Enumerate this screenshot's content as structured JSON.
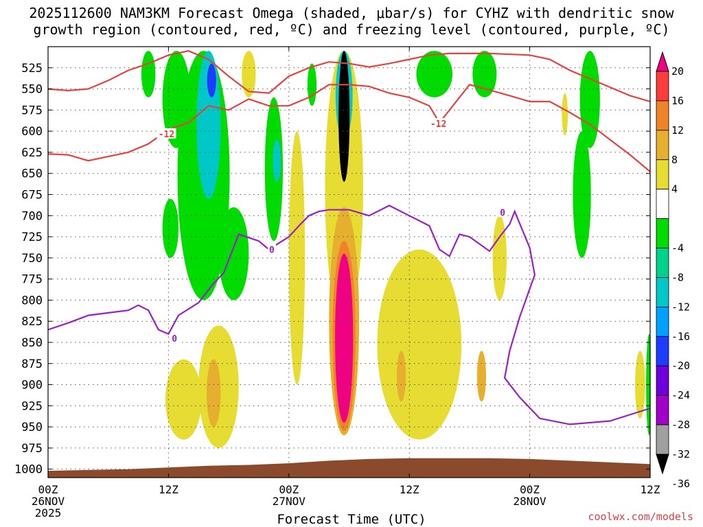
{
  "chart_data": {
    "type": "heatmap",
    "title_line1": "2025112600 NAM3KM Forecast Omega (shaded, μbar/s) for CYHZ with dendritic snow",
    "title_line2": "growth region (contoured, red, ºC) and freezing level (contoured, purple, ºC)",
    "xlabel": "Forecast Time (UTC)",
    "ylabel": "",
    "credit": "coolwx.com/models",
    "x_range_hours": [
      0,
      60
    ],
    "y_range_hpa": [
      1010,
      500
    ],
    "y_ticks": [
      525,
      550,
      575,
      600,
      625,
      650,
      675,
      700,
      725,
      750,
      775,
      800,
      825,
      850,
      875,
      900,
      925,
      950,
      975,
      1000
    ],
    "x_ticks": [
      {
        "hour": 0,
        "line1": "00Z",
        "line2": "26NOV",
        "line3": "2025"
      },
      {
        "hour": 12,
        "line1": "12Z",
        "line2": "",
        "line3": ""
      },
      {
        "hour": 24,
        "line1": "00Z",
        "line2": "27NOV",
        "line3": ""
      },
      {
        "hour": 36,
        "line1": "12Z",
        "line2": "",
        "line3": ""
      },
      {
        "hour": 48,
        "line1": "00Z",
        "line2": "28NOV",
        "line3": ""
      },
      {
        "hour": 60,
        "line1": "12Z",
        "line2": "",
        "line3": ""
      }
    ],
    "colorbar": {
      "labels": [
        "20",
        "16",
        "12",
        "8",
        "4",
        "-4",
        "-8",
        "-12",
        "-16",
        "-20",
        "-24",
        "-28",
        "-32",
        "-36"
      ],
      "bins": [
        {
          "from": -40,
          "to": -36,
          "color": "#000000"
        },
        {
          "from": -36,
          "to": -32,
          "color": "#a0a0a0"
        },
        {
          "from": -32,
          "to": -28,
          "color": "#a000c8"
        },
        {
          "from": -28,
          "to": -24,
          "color": "#6e00dc"
        },
        {
          "from": -24,
          "to": -20,
          "color": "#1e3cff"
        },
        {
          "from": -20,
          "to": -16,
          "color": "#00a0ff"
        },
        {
          "from": -16,
          "to": -12,
          "color": "#00c8c8"
        },
        {
          "from": -12,
          "to": -8,
          "color": "#00d28c"
        },
        {
          "from": -8,
          "to": -4,
          "color": "#00dc00"
        },
        {
          "from": -4,
          "to": 4,
          "color": "#ffffff"
        },
        {
          "from": 4,
          "to": 8,
          "color": "#e6dc32"
        },
        {
          "from": 8,
          "to": 12,
          "color": "#e6af2d"
        },
        {
          "from": 12,
          "to": 16,
          "color": "#f08228"
        },
        {
          "from": 16,
          "to": 20,
          "color": "#fa3c3c"
        },
        {
          "from": 20,
          "to": 24,
          "color": "#f00082"
        }
      ]
    },
    "omega_regions": [
      {
        "hour": 15.5,
        "p_top": 505,
        "p_bot": 800,
        "half_width_h": 2.6,
        "value": -6
      },
      {
        "hour": 16.0,
        "p_top": 505,
        "p_bot": 680,
        "half_width_h": 1.2,
        "value": -14
      },
      {
        "hour": 16.3,
        "p_top": 520,
        "p_bot": 560,
        "half_width_h": 0.45,
        "value": -22
      },
      {
        "hour": 12.8,
        "p_top": 505,
        "p_bot": 620,
        "half_width_h": 1.4,
        "value": -6
      },
      {
        "hour": 10.0,
        "p_top": 505,
        "p_bot": 560,
        "half_width_h": 0.7,
        "value": -6
      },
      {
        "hour": 12.2,
        "p_top": 680,
        "p_bot": 750,
        "half_width_h": 0.8,
        "value": -6
      },
      {
        "hour": 18.5,
        "p_top": 690,
        "p_bot": 800,
        "half_width_h": 1.5,
        "value": -6
      },
      {
        "hour": 22.5,
        "p_top": 560,
        "p_bot": 730,
        "half_width_h": 0.9,
        "value": -6
      },
      {
        "hour": 22.8,
        "p_top": 610,
        "p_bot": 660,
        "half_width_h": 0.4,
        "value": -13
      },
      {
        "hour": 26.3,
        "p_top": 520,
        "p_bot": 570,
        "half_width_h": 0.45,
        "value": -6
      },
      {
        "hour": 38.5,
        "p_top": 505,
        "p_bot": 560,
        "half_width_h": 1.8,
        "value": -6
      },
      {
        "hour": 43.5,
        "p_top": 505,
        "p_bot": 560,
        "half_width_h": 1.2,
        "value": -6
      },
      {
        "hour": 54.0,
        "p_top": 505,
        "p_bot": 620,
        "half_width_h": 1.0,
        "value": -6
      },
      {
        "hour": 53.2,
        "p_top": 600,
        "p_bot": 750,
        "half_width_h": 0.9,
        "value": -6
      },
      {
        "hour": 59.9,
        "p_top": 840,
        "p_bot": 960,
        "half_width_h": 0.3,
        "value": -8
      },
      {
        "hour": 29.5,
        "p_top": 505,
        "p_bot": 830,
        "half_width_h": 1.9,
        "value": 5
      },
      {
        "hour": 29.5,
        "p_top": 690,
        "p_bot": 960,
        "half_width_h": 1.5,
        "value": 10
      },
      {
        "hour": 29.5,
        "p_top": 730,
        "p_bot": 955,
        "half_width_h": 1.15,
        "value": 15
      },
      {
        "hour": 29.5,
        "p_top": 745,
        "p_bot": 945,
        "half_width_h": 0.9,
        "value": 22
      },
      {
        "hour": 29.5,
        "p_top": 505,
        "p_bot": 610,
        "half_width_h": 0.85,
        "value": -14
      },
      {
        "hour": 29.5,
        "p_top": 505,
        "p_bot": 660,
        "half_width_h": 0.55,
        "value": -38
      },
      {
        "hour": 17.0,
        "p_top": 830,
        "p_bot": 975,
        "half_width_h": 2.0,
        "value": 5
      },
      {
        "hour": 16.5,
        "p_top": 870,
        "p_bot": 950,
        "half_width_h": 0.7,
        "value": 9
      },
      {
        "hour": 13.5,
        "p_top": 870,
        "p_bot": 965,
        "half_width_h": 1.8,
        "value": 5
      },
      {
        "hour": 37.0,
        "p_top": 740,
        "p_bot": 965,
        "half_width_h": 4.2,
        "value": 5
      },
      {
        "hour": 35.2,
        "p_top": 860,
        "p_bot": 920,
        "half_width_h": 0.45,
        "value": 9
      },
      {
        "hour": 43.2,
        "p_top": 860,
        "p_bot": 920,
        "half_width_h": 0.45,
        "value": 9
      },
      {
        "hour": 24.8,
        "p_top": 600,
        "p_bot": 900,
        "half_width_h": 0.8,
        "value": 5
      },
      {
        "hour": 45.0,
        "p_top": 700,
        "p_bot": 800,
        "half_width_h": 0.7,
        "value": 5
      },
      {
        "hour": 59.0,
        "p_top": 860,
        "p_bot": 940,
        "half_width_h": 0.5,
        "value": 5
      },
      {
        "hour": 20.0,
        "p_top": 505,
        "p_bot": 560,
        "half_width_h": 0.7,
        "value": 5
      },
      {
        "hour": 51.5,
        "p_top": 555,
        "p_bot": 605,
        "half_width_h": 0.3,
        "value": 5
      }
    ],
    "contours": {
      "dgz_warm": {
        "color": "#e8403c",
        "label": "-12",
        "points": [
          [
            0,
            627
          ],
          [
            2,
            628
          ],
          [
            4,
            635
          ],
          [
            6,
            630
          ],
          [
            8,
            625
          ],
          [
            10,
            615
          ],
          [
            12,
            598
          ],
          [
            14,
            590
          ],
          [
            16,
            570
          ],
          [
            18,
            575
          ],
          [
            20,
            562
          ],
          [
            22,
            570
          ],
          [
            24,
            570
          ],
          [
            26,
            560
          ],
          [
            28,
            545
          ],
          [
            30,
            545
          ],
          [
            32,
            547
          ],
          [
            34,
            555
          ],
          [
            36,
            560
          ],
          [
            38,
            570
          ],
          [
            39,
            590
          ],
          [
            40,
            575
          ],
          [
            41,
            560
          ],
          [
            42,
            545
          ],
          [
            43,
            548
          ],
          [
            46,
            558
          ],
          [
            48,
            565
          ],
          [
            50,
            565
          ],
          [
            52,
            578
          ],
          [
            54,
            592
          ],
          [
            56,
            610
          ],
          [
            58,
            628
          ],
          [
            60,
            648
          ]
        ]
      },
      "dgz_cold": {
        "color": "#e8403c",
        "label": "-12",
        "points": [
          [
            0,
            550
          ],
          [
            2,
            552
          ],
          [
            4,
            550
          ],
          [
            6,
            540
          ],
          [
            8,
            528
          ],
          [
            10,
            520
          ],
          [
            12,
            510
          ],
          [
            14,
            505
          ],
          [
            16,
            515
          ],
          [
            18,
            535
          ],
          [
            20,
            553
          ],
          [
            22,
            555
          ],
          [
            24,
            535
          ],
          [
            26,
            525
          ],
          [
            28,
            518
          ],
          [
            30,
            520
          ],
          [
            32,
            524
          ],
          [
            34,
            520
          ],
          [
            36,
            515
          ],
          [
            38,
            510
          ],
          [
            40,
            508
          ],
          [
            44,
            508
          ],
          [
            48,
            510
          ],
          [
            50,
            515
          ],
          [
            52,
            528
          ],
          [
            54,
            538
          ],
          [
            56,
            548
          ],
          [
            58,
            558
          ],
          [
            60,
            565
          ]
        ]
      },
      "freezing_level": {
        "color": "#9a1ec8",
        "label": "0",
        "points": [
          [
            0,
            835
          ],
          [
            2,
            827
          ],
          [
            4,
            818
          ],
          [
            6,
            815
          ],
          [
            8,
            812
          ],
          [
            9,
            806
          ],
          [
            10,
            812
          ],
          [
            11,
            835
          ],
          [
            12,
            840
          ],
          [
            13,
            818
          ],
          [
            15,
            803
          ],
          [
            16.5,
            780
          ],
          [
            17.5,
            768
          ],
          [
            19,
            722
          ],
          [
            21,
            730
          ],
          [
            22,
            740
          ],
          [
            24,
            725
          ],
          [
            25,
            712
          ],
          [
            26,
            700
          ],
          [
            27,
            695
          ],
          [
            28,
            693
          ],
          [
            30,
            693
          ],
          [
            32,
            700
          ],
          [
            34,
            688
          ],
          [
            36,
            700
          ],
          [
            38,
            712
          ],
          [
            39,
            740
          ],
          [
            40,
            748
          ],
          [
            41,
            722
          ],
          [
            42,
            725
          ],
          [
            44,
            742
          ],
          [
            45,
            725
          ],
          [
            46,
            710
          ],
          [
            46.5,
            695
          ],
          [
            48,
            738
          ],
          [
            48.5,
            770
          ],
          [
            47,
            820
          ],
          [
            46,
            860
          ],
          [
            45.5,
            892
          ],
          [
            47,
            915
          ],
          [
            49,
            940
          ],
          [
            52,
            947
          ],
          [
            56,
            943
          ],
          [
            60,
            928
          ]
        ]
      }
    },
    "contour_labels": [
      {
        "text": "-12",
        "hour": 11.8,
        "p": 603
      },
      {
        "text": "-12",
        "hour": 38.9,
        "p": 591
      },
      {
        "text": "0",
        "hour": 22.3,
        "p": 740
      },
      {
        "text": "0",
        "hour": 12.6,
        "p": 845
      },
      {
        "text": "0",
        "hour": 45.3,
        "p": 696
      }
    ],
    "terrain": {
      "color": "#8b4a2b",
      "points": [
        [
          0,
          1002
        ],
        [
          4,
          1001
        ],
        [
          8,
          1000
        ],
        [
          12,
          998
        ],
        [
          16,
          996
        ],
        [
          20,
          995
        ],
        [
          24,
          993
        ],
        [
          28,
          990
        ],
        [
          32,
          988
        ],
        [
          36,
          987
        ],
        [
          40,
          987
        ],
        [
          44,
          987
        ],
        [
          48,
          988
        ],
        [
          52,
          990
        ],
        [
          56,
          992
        ],
        [
          60,
          994
        ]
      ]
    }
  }
}
